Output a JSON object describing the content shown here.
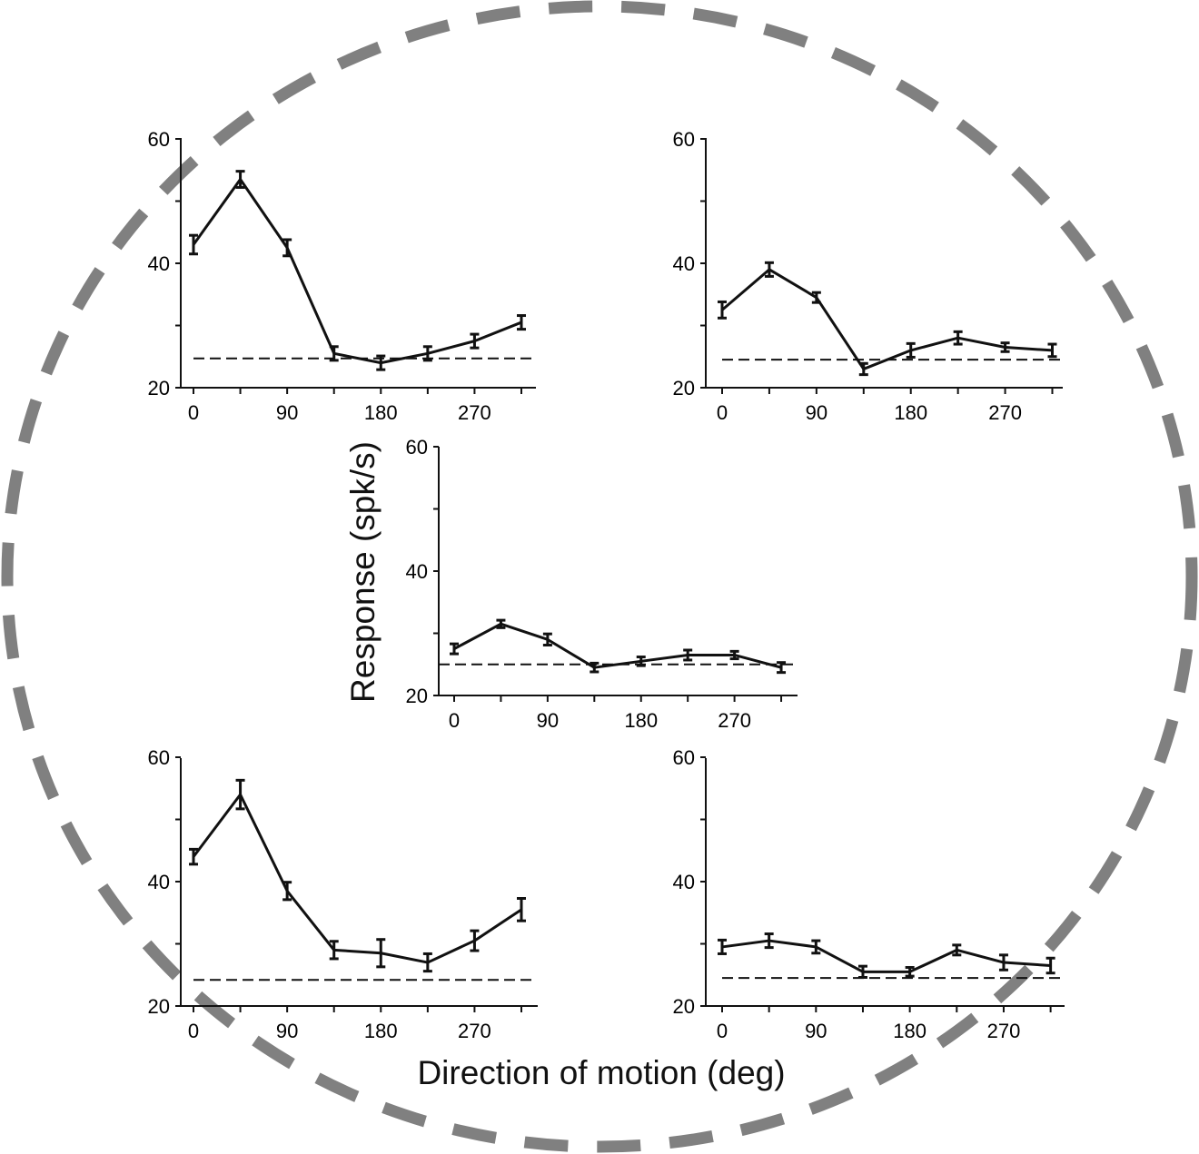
{
  "figure": {
    "xlabel": "Direction of motion (deg)",
    "ylabel": "Response (spk/s)",
    "ring_color": "#808080",
    "line_color": "#111111"
  },
  "chart_data": [
    {
      "type": "line",
      "panel": "top-left",
      "x": [
        0,
        45,
        90,
        135,
        180,
        225,
        270,
        315
      ],
      "xticks": [
        "0",
        "90",
        "180",
        "270"
      ],
      "xtick_values": [
        0,
        90,
        180,
        270
      ],
      "yticks": [
        "20",
        "40",
        "60"
      ],
      "ytick_values": [
        20,
        40,
        60
      ],
      "ylim": [
        20,
        60
      ],
      "series": [
        {
          "values": [
            43,
            53.5,
            42.5,
            25.5,
            24,
            25.5,
            27.5,
            30.5
          ],
          "errors": [
            1.5,
            1.3,
            1.3,
            1.1,
            1.1,
            1.1,
            1.1,
            1.1
          ]
        }
      ],
      "baseline": 24.7
    },
    {
      "type": "line",
      "panel": "top-right",
      "x": [
        0,
        45,
        90,
        135,
        180,
        225,
        270,
        315
      ],
      "xticks": [
        "0",
        "90",
        "180",
        "270"
      ],
      "xtick_values": [
        0,
        90,
        180,
        270
      ],
      "yticks": [
        "20",
        "40",
        "60"
      ],
      "ytick_values": [
        20,
        40,
        60
      ],
      "ylim": [
        20,
        60
      ],
      "series": [
        {
          "values": [
            32.5,
            39,
            34.5,
            23,
            26,
            28,
            26.5,
            26
          ],
          "errors": [
            1.3,
            1.1,
            0.8,
            0.9,
            1.1,
            1.0,
            0.7,
            1.0
          ]
        }
      ],
      "baseline": 24.5
    },
    {
      "type": "line",
      "panel": "center",
      "x": [
        0,
        45,
        90,
        135,
        180,
        225,
        270,
        315
      ],
      "xticks": [
        "0",
        "90",
        "180",
        "270"
      ],
      "xtick_values": [
        0,
        90,
        180,
        270
      ],
      "yticks": [
        "20",
        "40",
        "60"
      ],
      "ytick_values": [
        20,
        40,
        60
      ],
      "ylim": [
        20,
        60
      ],
      "series": [
        {
          "values": [
            27.5,
            31.5,
            29,
            24.5,
            25.5,
            26.5,
            26.5,
            24.5
          ],
          "errors": [
            0.8,
            0.6,
            0.9,
            0.7,
            0.7,
            0.8,
            0.6,
            0.8
          ]
        }
      ],
      "baseline": 25
    },
    {
      "type": "line",
      "panel": "bottom-left",
      "x": [
        0,
        45,
        90,
        135,
        180,
        225,
        270,
        315
      ],
      "xticks": [
        "0",
        "90",
        "180",
        "270"
      ],
      "xtick_values": [
        0,
        90,
        180,
        270
      ],
      "yticks": [
        "20",
        "40",
        "60"
      ],
      "ytick_values": [
        20,
        40,
        60
      ],
      "ylim": [
        20,
        60
      ],
      "series": [
        {
          "values": [
            44,
            54,
            38.5,
            29,
            28.5,
            27,
            30.5,
            35.5
          ],
          "errors": [
            1.2,
            2.3,
            1.4,
            1.4,
            2.2,
            1.4,
            1.6,
            1.8
          ]
        }
      ],
      "baseline": 24.2
    },
    {
      "type": "line",
      "panel": "bottom-right",
      "x": [
        0,
        45,
        90,
        135,
        180,
        225,
        270,
        315
      ],
      "xticks": [
        "0",
        "90",
        "180",
        "270"
      ],
      "xtick_values": [
        0,
        90,
        180,
        270
      ],
      "yticks": [
        "20",
        "40",
        "60"
      ],
      "ytick_values": [
        20,
        40,
        60
      ],
      "ylim": [
        20,
        60
      ],
      "series": [
        {
          "values": [
            29.5,
            30.5,
            29.5,
            25.5,
            25.5,
            29,
            27,
            26.5
          ],
          "errors": [
            1.1,
            1.1,
            1.0,
            0.9,
            0.7,
            0.8,
            1.2,
            1.2
          ]
        }
      ],
      "baseline": 24.5
    }
  ]
}
